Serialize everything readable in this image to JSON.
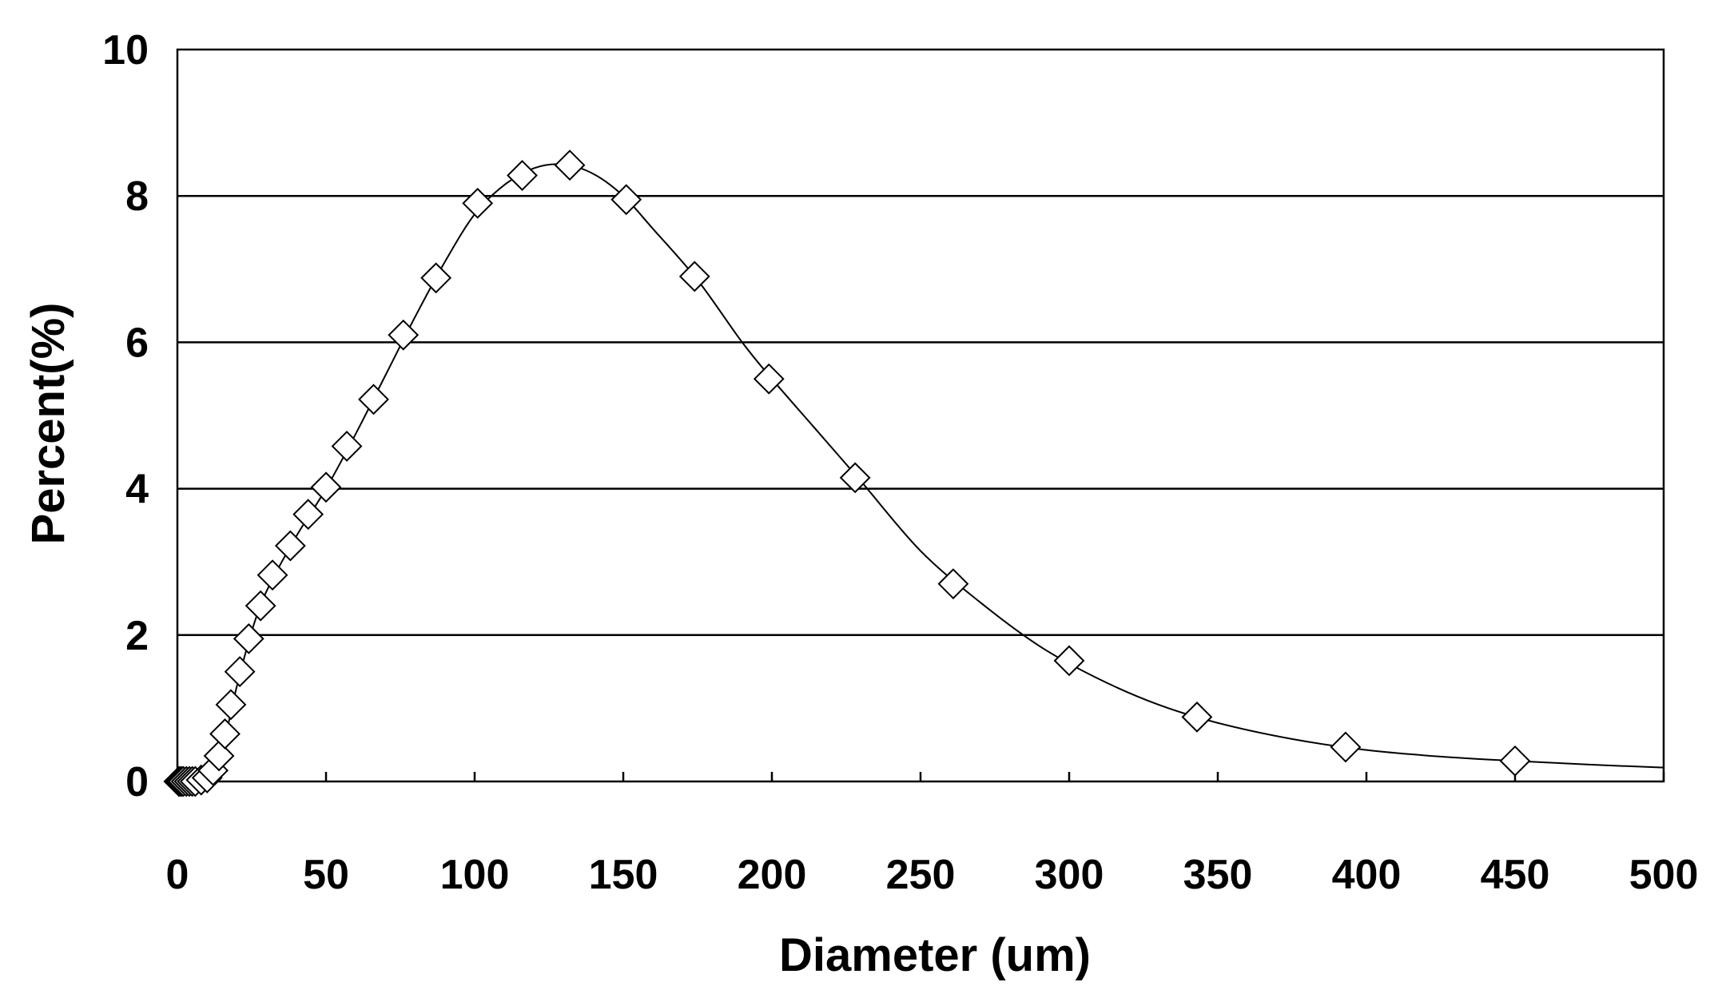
{
  "chart_data": {
    "type": "scatter",
    "title": "",
    "xlabel": "Diameter (um)",
    "ylabel": "Percent(%)",
    "xlim": [
      0,
      500
    ],
    "ylim": [
      0,
      10
    ],
    "xticks": [
      "0",
      "50",
      "100",
      "150",
      "200",
      "250",
      "300",
      "350",
      "400",
      "450",
      "500"
    ],
    "yticks": [
      "0",
      "2",
      "4",
      "6",
      "8",
      "10"
    ],
    "grid": "horizontal",
    "legend": "none",
    "marker": "open-diamond",
    "line_color": "#000000",
    "series": [
      {
        "points": [
          [
            0.5,
            0
          ],
          [
            1,
            0
          ],
          [
            1.5,
            0
          ],
          [
            2,
            0
          ],
          [
            3,
            0
          ],
          [
            4,
            0
          ],
          [
            5,
            0
          ],
          [
            6,
            0
          ],
          [
            8,
            0.02
          ],
          [
            10,
            0.05
          ],
          [
            12,
            0.15
          ],
          [
            14,
            0.35
          ],
          [
            16,
            0.65
          ],
          [
            18,
            1.05
          ],
          [
            21,
            1.5
          ],
          [
            24,
            1.95
          ],
          [
            28,
            2.4
          ],
          [
            32,
            2.82
          ],
          [
            38,
            3.22
          ],
          [
            44,
            3.65
          ],
          [
            50,
            4.02
          ],
          [
            57,
            4.58
          ],
          [
            66,
            5.22
          ],
          [
            76,
            6.1
          ],
          [
            87,
            6.88
          ],
          [
            101,
            7.9
          ],
          [
            116,
            8.28
          ],
          [
            132,
            8.42
          ],
          [
            151,
            7.95
          ],
          [
            174,
            6.9
          ],
          [
            199,
            5.5
          ],
          [
            228,
            4.15
          ],
          [
            261,
            2.7
          ],
          [
            300,
            1.65
          ],
          [
            343,
            0.88
          ],
          [
            393,
            0.47
          ],
          [
            450,
            0.28
          ]
        ]
      }
    ],
    "fit_curve": [
      [
        0,
        0
      ],
      [
        8,
        0.02
      ],
      [
        12,
        0.15
      ],
      [
        16,
        0.6
      ],
      [
        20,
        1.3
      ],
      [
        25,
        2.05
      ],
      [
        30,
        2.6
      ],
      [
        40,
        3.35
      ],
      [
        50,
        4.0
      ],
      [
        60,
        4.75
      ],
      [
        70,
        5.55
      ],
      [
        80,
        6.35
      ],
      [
        90,
        7.1
      ],
      [
        100,
        7.75
      ],
      [
        110,
        8.15
      ],
      [
        120,
        8.38
      ],
      [
        130,
        8.43
      ],
      [
        140,
        8.3
      ],
      [
        150,
        8.0
      ],
      [
        160,
        7.55
      ],
      [
        175,
        6.85
      ],
      [
        190,
        6.0
      ],
      [
        200,
        5.5
      ],
      [
        215,
        4.8
      ],
      [
        230,
        4.1
      ],
      [
        250,
        3.15
      ],
      [
        270,
        2.45
      ],
      [
        290,
        1.85
      ],
      [
        310,
        1.4
      ],
      [
        330,
        1.05
      ],
      [
        350,
        0.8
      ],
      [
        375,
        0.58
      ],
      [
        400,
        0.43
      ],
      [
        425,
        0.34
      ],
      [
        450,
        0.28
      ],
      [
        475,
        0.23
      ],
      [
        500,
        0.19
      ]
    ]
  }
}
